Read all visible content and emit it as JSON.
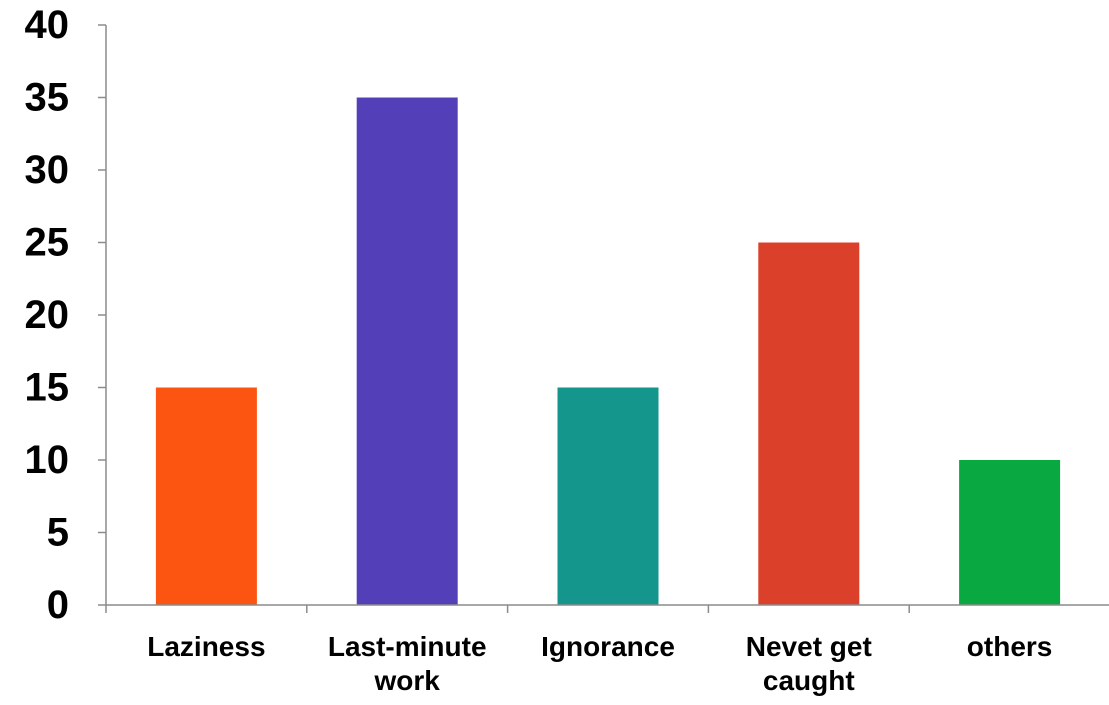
{
  "chart_data": {
    "type": "bar",
    "title": "",
    "xlabel": "",
    "ylabel": "",
    "categories": [
      [
        "Laziness"
      ],
      [
        "Last-minute",
        "work"
      ],
      [
        "Ignorance"
      ],
      [
        "Nevet get",
        "caught"
      ],
      [
        "others"
      ]
    ],
    "values": [
      15,
      35,
      15,
      25,
      10
    ],
    "colors": [
      "#fc5512",
      "#5340b8",
      "#14968c",
      "#db412a",
      "#0aa840"
    ],
    "ylim": [
      0,
      40
    ],
    "yticks": [
      "0",
      "5",
      "10",
      "15",
      "20",
      "25",
      "30",
      "35",
      "40"
    ],
    "ytick_values": [
      0,
      5,
      10,
      15,
      20,
      25,
      30,
      35,
      40
    ],
    "grid": false,
    "legend": "none"
  }
}
